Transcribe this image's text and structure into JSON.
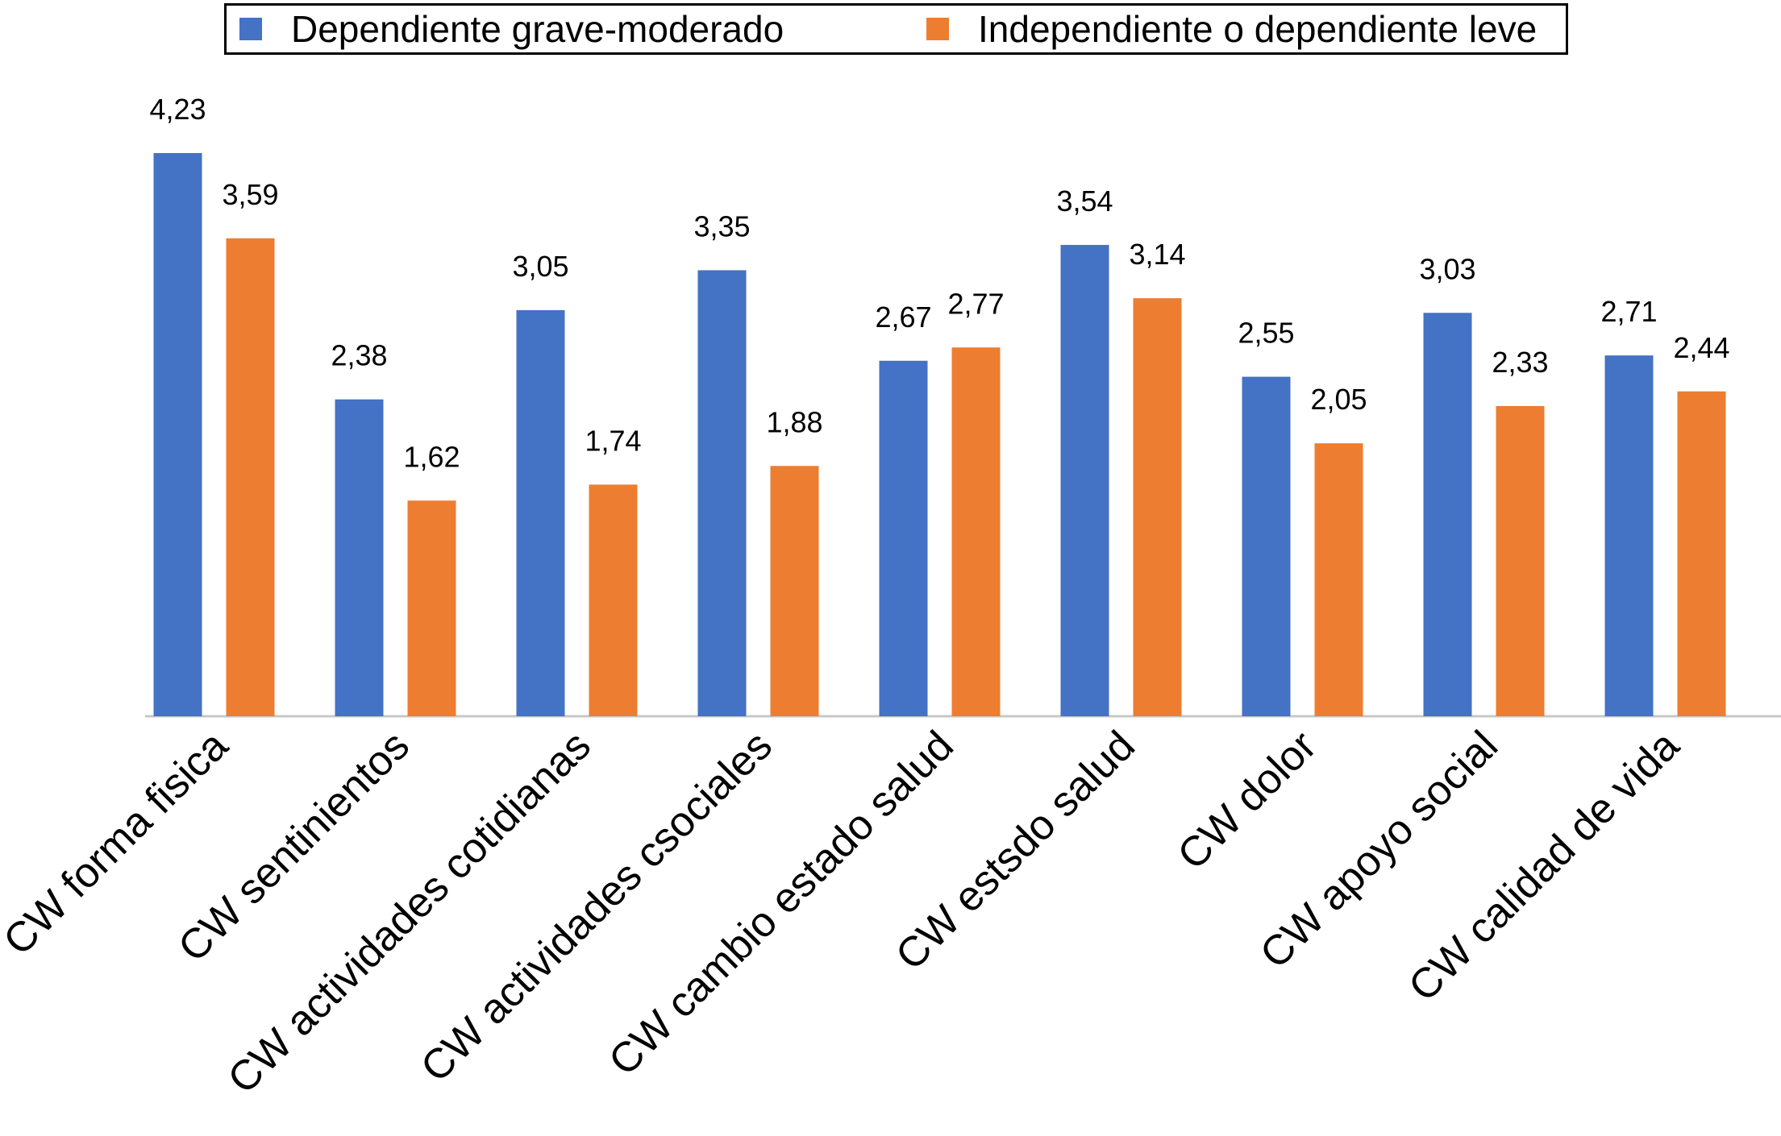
{
  "chart_data": {
    "type": "bar",
    "categories": [
      "CW forma fisica",
      "CW sentinientos",
      "CW actividades cotidianas",
      "CW actividades csociales",
      "CW cambio estado salud",
      "CW estsdo salud",
      "CW dolor",
      "CW apoyo social",
      "CW calidad de vida"
    ],
    "series": [
      {
        "name": "Dependiente grave-moderado",
        "color": "#4472C4",
        "values": [
          4.23,
          2.38,
          3.05,
          3.35,
          2.67,
          3.54,
          2.55,
          3.03,
          2.71
        ],
        "labels": [
          "4,23",
          "2,38",
          "3,05",
          "3,35",
          "2,67",
          "3,54",
          "2,55",
          "3,03",
          "2,71"
        ]
      },
      {
        "name": "Independiente o dependiente leve",
        "color": "#ED7D31",
        "values": [
          3.59,
          1.62,
          1.74,
          1.88,
          2.77,
          3.14,
          2.05,
          2.33,
          2.44
        ],
        "labels": [
          "3,59",
          "1,62",
          "1,74",
          "1,88",
          "2,77",
          "3,14",
          "2,05",
          "2,33",
          "2,44"
        ]
      }
    ],
    "title": "",
    "xlabel": "",
    "ylabel": "",
    "ylim": [
      0,
      4.23
    ],
    "grid": false,
    "legend_position": "top"
  }
}
